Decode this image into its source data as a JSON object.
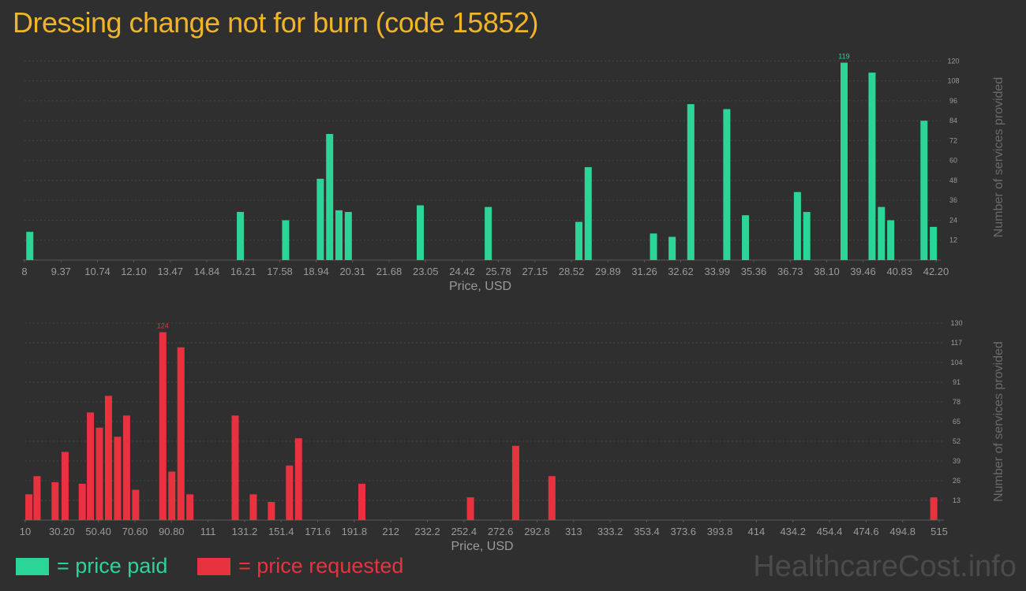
{
  "title": "Dressing change not for burn (code 15852)",
  "legend": {
    "paid": "= price paid",
    "requested": "= price requested"
  },
  "watermark": "HealthcareCost.info",
  "colors": {
    "background": "#2f2f2f",
    "title": "#f0b429",
    "paid": "#2ad597",
    "requested": "#e8323f",
    "axis_text": "#9a9a9a",
    "grid": "#444444"
  },
  "chart_data": [
    {
      "type": "bar",
      "id": "price-paid",
      "xlabel": "Price, USD",
      "ylabel": "Number of services provided",
      "xlim": [
        8,
        42.2
      ],
      "ylim": [
        0,
        124
      ],
      "x_ticks": [
        "8",
        "9.37",
        "10.74",
        "12.10",
        "13.47",
        "14.84",
        "16.21",
        "17.58",
        "18.94",
        "20.31",
        "21.68",
        "23.05",
        "24.42",
        "25.78",
        "27.15",
        "28.52",
        "29.89",
        "31.26",
        "32.62",
        "33.99",
        "35.36",
        "36.73",
        "38.10",
        "39.46",
        "40.83",
        "42.20"
      ],
      "y_ticks": [
        12,
        24,
        36,
        48,
        60,
        72,
        84,
        96,
        108,
        120
      ],
      "max_label": "119",
      "bars": [
        {
          "x": 8.2,
          "y": 17
        },
        {
          "x": 16.1,
          "y": 29
        },
        {
          "x": 17.8,
          "y": 24
        },
        {
          "x": 19.1,
          "y": 49
        },
        {
          "x": 19.45,
          "y": 76
        },
        {
          "x": 19.8,
          "y": 30
        },
        {
          "x": 20.15,
          "y": 29
        },
        {
          "x": 22.85,
          "y": 33
        },
        {
          "x": 25.4,
          "y": 32
        },
        {
          "x": 28.8,
          "y": 23
        },
        {
          "x": 29.15,
          "y": 56
        },
        {
          "x": 31.6,
          "y": 16
        },
        {
          "x": 32.3,
          "y": 14
        },
        {
          "x": 33.0,
          "y": 94
        },
        {
          "x": 34.35,
          "y": 91
        },
        {
          "x": 35.05,
          "y": 27
        },
        {
          "x": 37.0,
          "y": 41
        },
        {
          "x": 37.35,
          "y": 29
        },
        {
          "x": 38.75,
          "y": 119
        },
        {
          "x": 39.8,
          "y": 113
        },
        {
          "x": 40.15,
          "y": 32
        },
        {
          "x": 40.5,
          "y": 24
        },
        {
          "x": 41.75,
          "y": 84
        },
        {
          "x": 42.1,
          "y": 20
        }
      ]
    },
    {
      "type": "bar",
      "id": "price-requested",
      "xlabel": "Price, USD",
      "ylabel": "Number of services provided",
      "xlim": [
        10,
        515
      ],
      "ylim": [
        0,
        130
      ],
      "x_ticks": [
        {
          "v": 10,
          "label": "10"
        },
        {
          "v": 30.2,
          "label": "30.20"
        },
        {
          "v": 50.4,
          "label": "50.40"
        },
        {
          "v": 70.6,
          "label": "70.60"
        },
        {
          "v": 90.8,
          "label": "90.80"
        },
        {
          "v": 111,
          "label": "111"
        },
        {
          "v": 131.2,
          "label": "131.2"
        },
        {
          "v": 151.4,
          "label": "151.4"
        },
        {
          "v": 171.6,
          "label": "171.6"
        },
        {
          "v": 191.8,
          "label": "191.8"
        },
        {
          "v": 212,
          "label": "212"
        },
        {
          "v": 232.2,
          "label": "232.2"
        },
        {
          "v": 252.4,
          "label": "252.4"
        },
        {
          "v": 272.6,
          "label": "272.6"
        },
        {
          "v": 292.8,
          "label": "292.8"
        },
        {
          "v": 313,
          "label": "313"
        },
        {
          "v": 333.2,
          "label": "333.2"
        },
        {
          "v": 353.4,
          "label": "353.4"
        },
        {
          "v": 373.6,
          "label": "373.6"
        },
        {
          "v": 393.8,
          "label": "393.8"
        },
        {
          "v": 414,
          "label": "414"
        },
        {
          "v": 434.2,
          "label": "434.2"
        },
        {
          "v": 454.4,
          "label": "454.4"
        },
        {
          "v": 474.6,
          "label": "474.6"
        },
        {
          "v": 494.8,
          "label": "494.8"
        },
        {
          "v": 515,
          "label": "515"
        }
      ],
      "y_ticks": [
        13,
        26,
        39,
        52,
        65,
        78,
        91,
        104,
        117,
        130
      ],
      "max_label": "124",
      "bars": [
        {
          "x": 12,
          "y": 17
        },
        {
          "x": 16.5,
          "y": 29
        },
        {
          "x": 26.5,
          "y": 25
        },
        {
          "x": 32,
          "y": 45
        },
        {
          "x": 41.5,
          "y": 24
        },
        {
          "x": 46,
          "y": 71
        },
        {
          "x": 51,
          "y": 61
        },
        {
          "x": 56,
          "y": 82
        },
        {
          "x": 61,
          "y": 55
        },
        {
          "x": 66,
          "y": 69
        },
        {
          "x": 71,
          "y": 20
        },
        {
          "x": 86,
          "y": 124
        },
        {
          "x": 91,
          "y": 32
        },
        {
          "x": 96,
          "y": 114
        },
        {
          "x": 101,
          "y": 17
        },
        {
          "x": 126,
          "y": 69
        },
        {
          "x": 136,
          "y": 17
        },
        {
          "x": 146,
          "y": 12
        },
        {
          "x": 156,
          "y": 36
        },
        {
          "x": 161,
          "y": 54
        },
        {
          "x": 196,
          "y": 24
        },
        {
          "x": 256,
          "y": 15
        },
        {
          "x": 281,
          "y": 49
        },
        {
          "x": 301,
          "y": 29
        },
        {
          "x": 512,
          "y": 15
        }
      ]
    }
  ]
}
